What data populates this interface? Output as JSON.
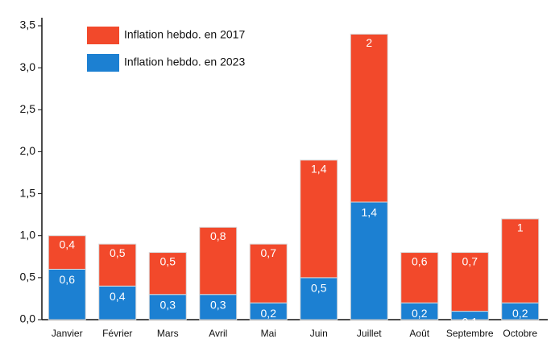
{
  "chart_data": {
    "type": "stacked_bar",
    "categories": [
      "Janvier",
      "Février",
      "Mars",
      "Avril",
      "Mai",
      "Juin",
      "Juillet",
      "Août",
      "Septembre",
      "Octobre"
    ],
    "series": [
      {
        "name": "Inflation hebdo. en 2023",
        "color": "#1c80d2",
        "values": [
          0.6,
          0.4,
          0.3,
          0.3,
          0.2,
          0.5,
          1.4,
          0.2,
          0.1,
          0.2
        ],
        "value_labels": [
          "0,6",
          "0,4",
          "0,3",
          "0,3",
          "0,2",
          "0,5",
          "1,4",
          "0,2",
          "0,1",
          "0,2"
        ]
      },
      {
        "name": "Inflation hebdo. en 2017",
        "color": "#f2492b",
        "values": [
          0.4,
          0.5,
          0.5,
          0.8,
          0.7,
          1.4,
          2,
          0.6,
          0.7,
          1
        ],
        "value_labels": [
          "0,4",
          "0,5",
          "0,5",
          "0,8",
          "0,7",
          "1,4",
          "2",
          "0,6",
          "0,7",
          "1"
        ]
      }
    ],
    "ylim": [
      0,
      3.5
    ],
    "yticks": [
      {
        "value": 0,
        "label": "0,0"
      },
      {
        "value": 0.5,
        "label": "0,5"
      },
      {
        "value": 1,
        "label": "1,0"
      },
      {
        "value": 1.5,
        "label": "1,5"
      },
      {
        "value": 2,
        "label": "2,0"
      },
      {
        "value": 2.5,
        "label": "2,5"
      },
      {
        "value": 3,
        "label": "3,0"
      },
      {
        "value": 3.5,
        "label": "3,5"
      }
    ],
    "grid": false,
    "legend": "top-left"
  }
}
